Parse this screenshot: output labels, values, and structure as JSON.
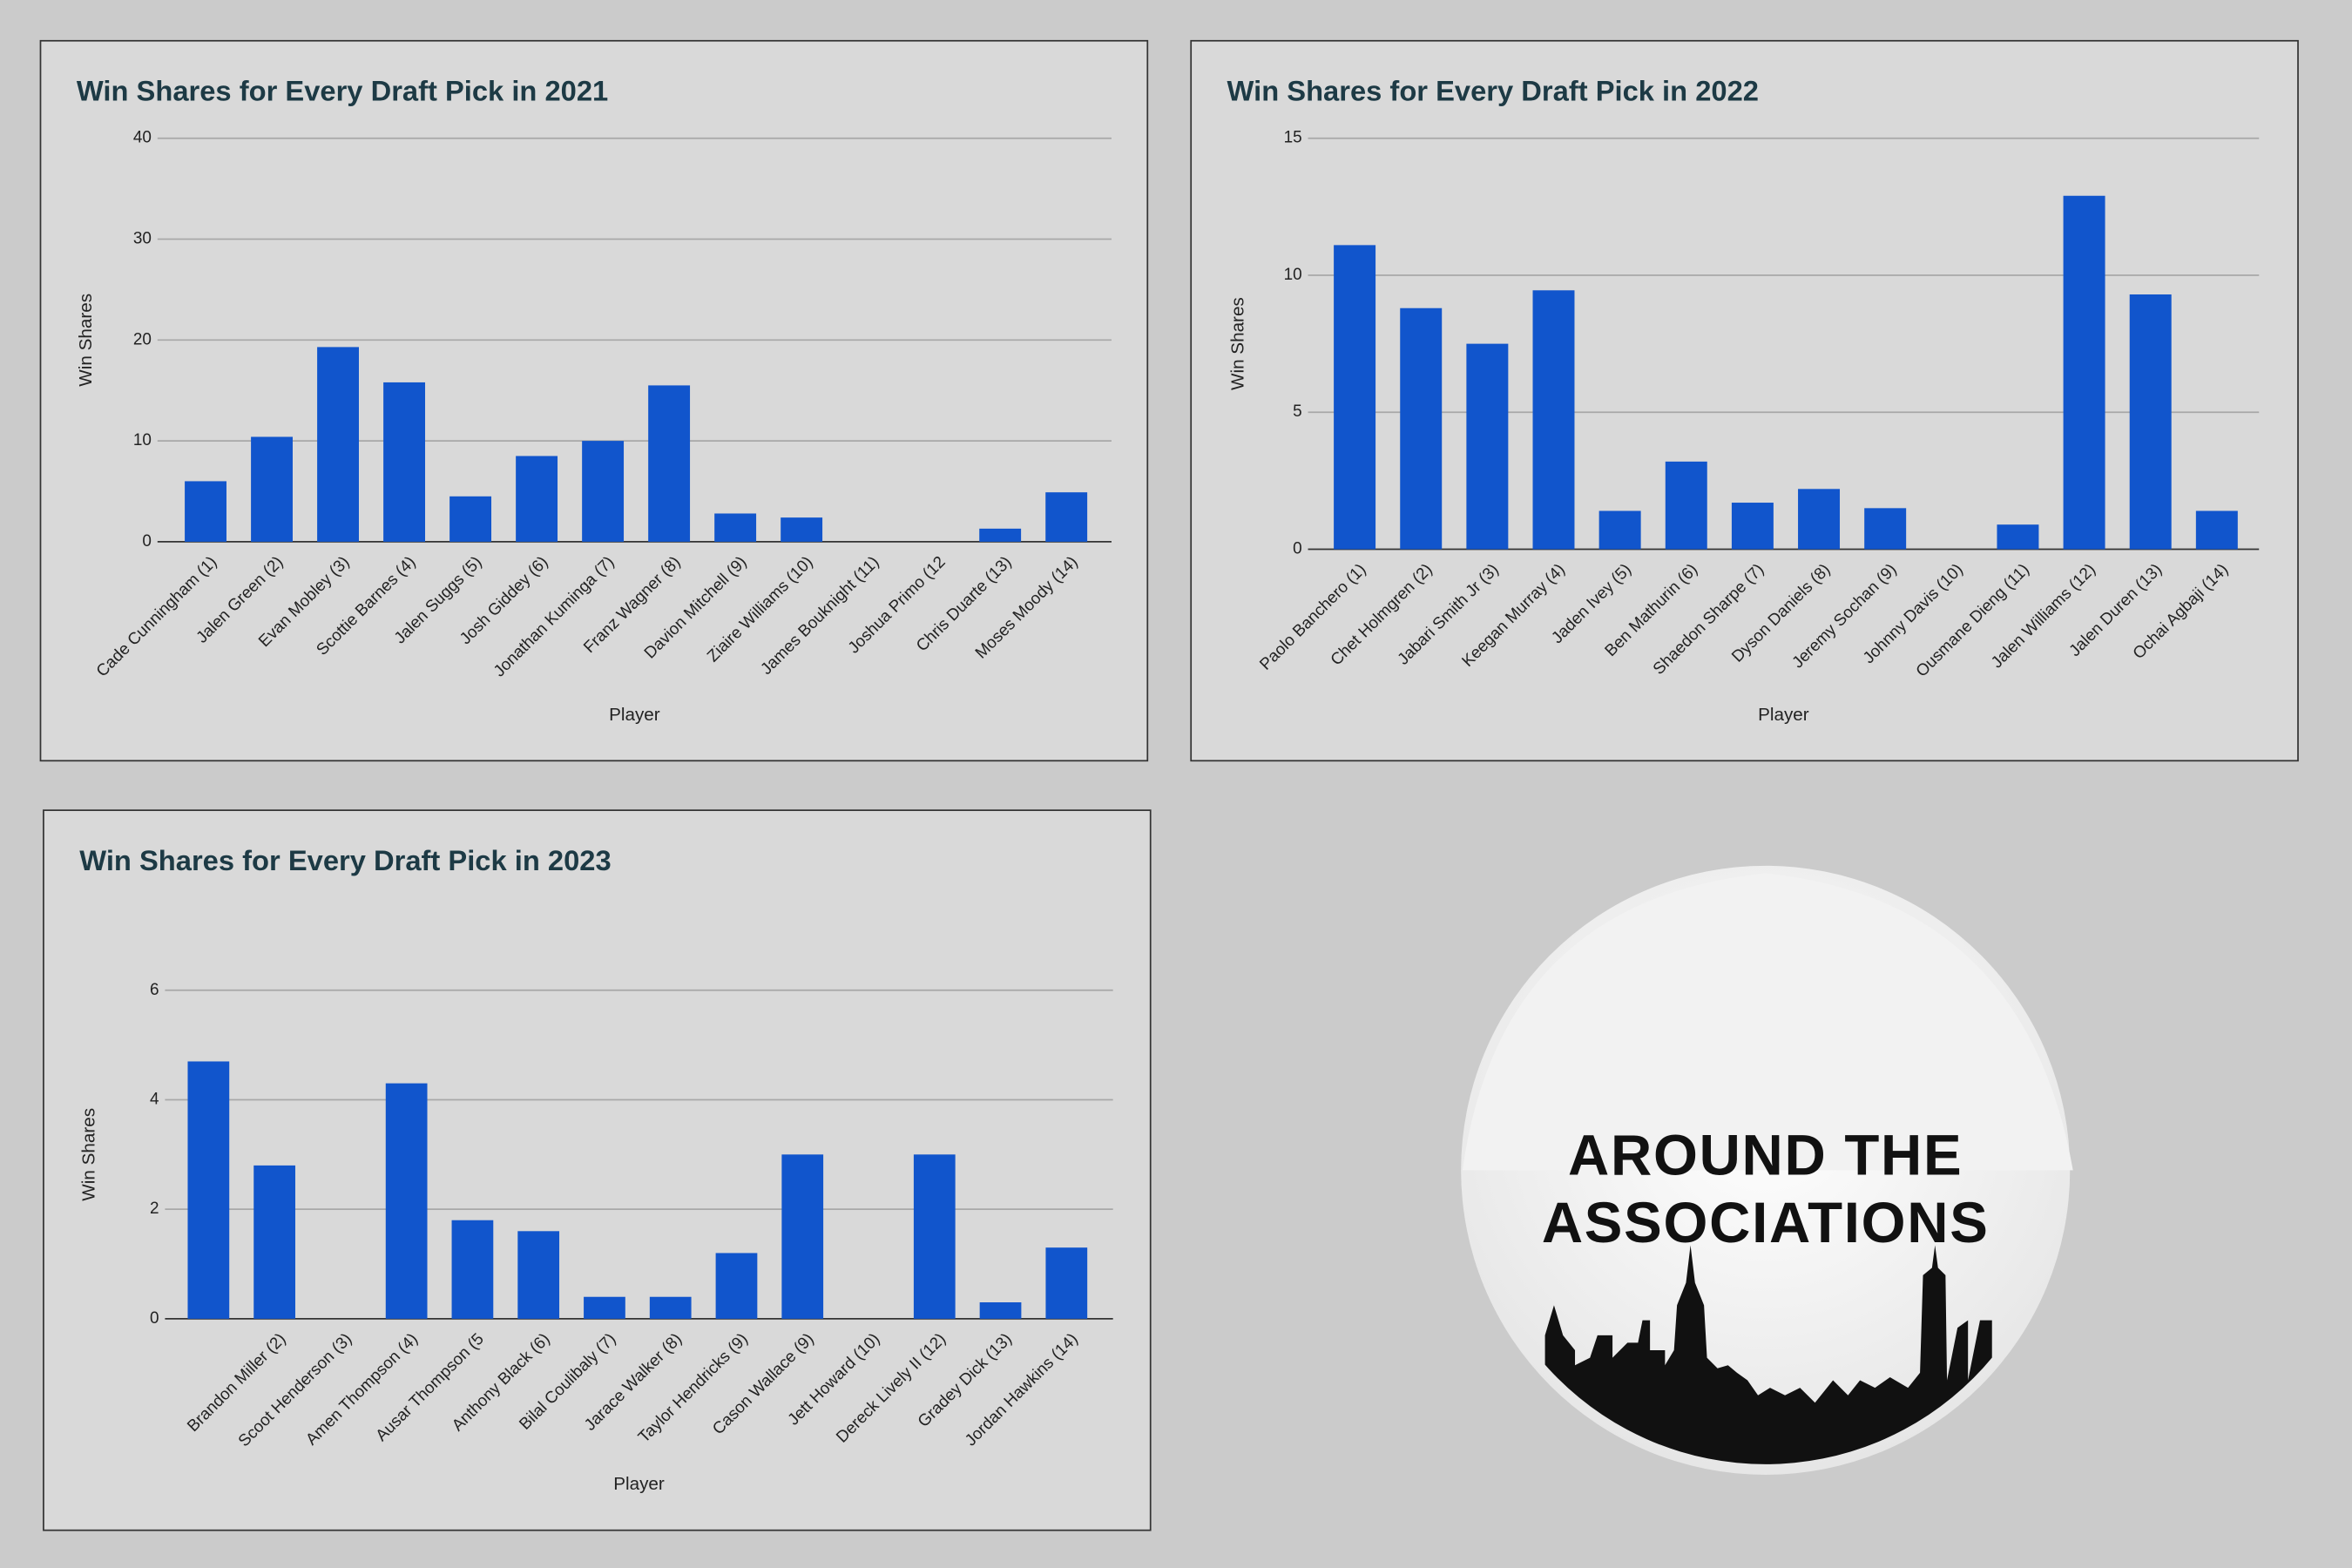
{
  "chart_data": [
    {
      "type": "bar",
      "title": "Win Shares for Every Draft Pick in 2021",
      "x_label": "Player",
      "y_label": "Win Shares",
      "categories": [
        "Cade Cunningham (1)",
        "Jalen Green (2)",
        "Evan Mobley (3)",
        "Scottie Barnes (4)",
        "Jalen Suggs (5)",
        "Josh Giddey (6)",
        "Jonathan Kuminga (7)",
        "Franz Wagner (8)",
        "Davion Mitchell (9)",
        "Ziaire Williams (10)",
        "James Bouknight (11)",
        "Joshua Primo (12",
        "Chris Duarte (13)",
        "Moses Moody (14)"
      ],
      "values": [
        6.0,
        10.4,
        19.3,
        15.8,
        4.5,
        8.5,
        10.0,
        15.5,
        2.8,
        2.4,
        0,
        0,
        1.3,
        4.9
      ],
      "color": "#1155cc",
      "ylim": [
        0,
        40
      ],
      "yticks": [
        0,
        10,
        20,
        30,
        40
      ],
      "grid": true
    },
    {
      "type": "bar",
      "title": "Win Shares for Every Draft Pick in 2022",
      "x_label": "Player",
      "y_label": "Win Shares",
      "categories": [
        "Paolo Banchero (1)",
        "Chet Holmgren (2)",
        "Jabari Smith Jr (3)",
        "Keegan Murray (4)",
        "Jaden Ivey (5)",
        "Ben Mathurin (6)",
        "Shaedon Sharpe (7)",
        "Dyson Daniels (8)",
        "Jeremy Sochan (9)",
        "Johnny Davis (10)",
        "Ousmane Dieng (11)",
        "Jalen Williams (12)",
        "Jalen Duren (13)",
        "Ochai Agbaji (14)"
      ],
      "values": [
        11.1,
        8.8,
        7.5,
        9.45,
        1.4,
        3.2,
        1.7,
        2.2,
        1.5,
        0,
        0.9,
        12.9,
        9.3,
        1.4
      ],
      "color": "#1155cc",
      "ylim": [
        0,
        15
      ],
      "yticks": [
        0,
        5,
        10,
        15
      ],
      "grid": true
    },
    {
      "type": "bar",
      "title": "Win Shares for Every Draft Pick in 2023",
      "x_label": "Player",
      "y_label": "Win Shares",
      "categories": [
        null,
        "Brandon Miller (2)",
        "Scoot Henderson (3)",
        "Amen Thompson (4)",
        "Ausar Thompson (5",
        "Anthony Black (6)",
        "Bilal Coulibaly (7)",
        "Jarace Walker (8)",
        "Taylor Hendricks (9)",
        "Cason Wallace (9)",
        "Jett Howard (10)",
        "Dereck Lively II (12)",
        "Gradey Dick (13)",
        "Jordan Hawkins (14)"
      ],
      "values": [
        4.7,
        2.8,
        0,
        4.3,
        1.8,
        1.6,
        0.4,
        0.4,
        1.2,
        3.0,
        0,
        3.0,
        0.3,
        1.3
      ],
      "color": "#1155cc",
      "ylim": [
        0,
        6
      ],
      "yticks": [
        0,
        2,
        4,
        6
      ],
      "grid": true
    }
  ],
  "logo": {
    "lines": [
      "AROUND THE",
      "ASSOCIATIONS"
    ]
  }
}
